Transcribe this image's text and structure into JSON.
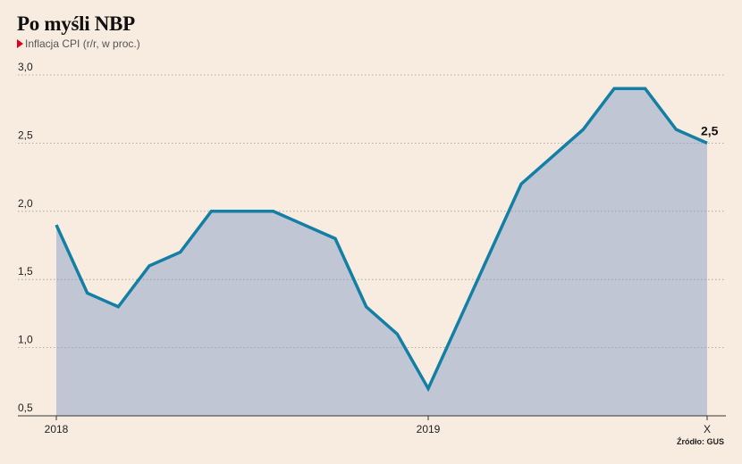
{
  "title": "Po myśli NBP",
  "subtitle": "Inflacja CPI (r/r, w proc.)",
  "source": "Źródło: GUS",
  "colors": {
    "background": "#f8ece0",
    "line": "#137fa5",
    "area": "#c0c6d4",
    "marker": "#e2001a"
  },
  "chart_data": {
    "type": "area",
    "title": "Po myśli NBP",
    "subtitle": "Inflacja CPI (r/r, w proc.)",
    "x": [
      "2018-01",
      "2018-02",
      "2018-03",
      "2018-04",
      "2018-05",
      "2018-06",
      "2018-07",
      "2018-08",
      "2018-09",
      "2018-10",
      "2018-11",
      "2018-12",
      "2019-01",
      "2019-02",
      "2019-03",
      "2019-04",
      "2019-05",
      "2019-06",
      "2019-07",
      "2019-08",
      "2019-09",
      "2019-10"
    ],
    "series": [
      {
        "values": [
          1.9,
          1.4,
          1.3,
          1.6,
          1.7,
          2.0,
          2.0,
          2.0,
          1.9,
          1.8,
          1.3,
          1.1,
          0.7,
          1.2,
          1.7,
          2.2,
          2.4,
          2.6,
          2.9,
          2.9,
          2.6,
          2.5
        ]
      }
    ],
    "ylim": [
      0.5,
      3.0
    ],
    "yticks": [
      "0,5",
      "1,0",
      "1,5",
      "2,0",
      "2,5",
      "3,0"
    ],
    "xticks": [
      {
        "label": "2018",
        "index": 0
      },
      {
        "label": "2019",
        "index": 12
      },
      {
        "label": "X",
        "index": 21
      }
    ],
    "last_value_label": "2,5",
    "grid": "horizontal dotted",
    "legend": "none"
  }
}
